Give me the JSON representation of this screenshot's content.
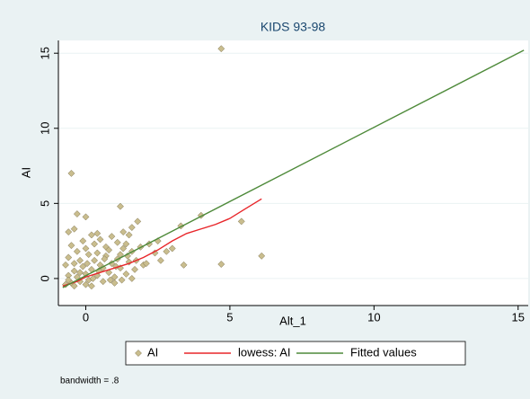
{
  "chart_data": {
    "type": "scatter",
    "title": "KIDS 93-98",
    "x_label": "Alt_1",
    "y_label": "AI",
    "note": "bandwidth = .8",
    "xlim": [
      -0.95,
      15.35
    ],
    "ylim": [
      -1.8,
      15.85
    ],
    "xticks": [
      0,
      5,
      10,
      15
    ],
    "yticks": [
      0,
      5,
      10,
      15
    ],
    "grid": true,
    "series": [
      {
        "name": "AI",
        "kind": "markers",
        "color": "#c9bd8e",
        "x": [
          -0.7,
          -0.6,
          -0.5,
          -0.4,
          -0.3,
          -0.2,
          -0.1,
          0,
          0.1,
          0.2,
          0.3,
          0.4,
          0.5,
          0.6,
          0.7,
          0.8,
          0.9,
          1.0,
          1.1,
          1.2,
          1.3,
          1.4,
          1.5,
          1.6,
          1.7,
          -0.6,
          -0.5,
          -0.3,
          -0.1,
          0.1,
          0.3,
          0.5,
          0.7,
          0.9,
          1.1,
          1.3,
          1.5,
          -0.7,
          -0.4,
          0,
          0.2,
          0.4,
          0.6,
          0.8,
          1.0,
          1.2,
          1.4,
          1.6,
          -0.2,
          0.0,
          0.2,
          0.4,
          -0.6,
          -0.4,
          -0.2,
          0.05,
          0.25,
          0.45,
          0.65,
          0.85,
          1.05,
          1.25,
          1.45,
          1.75,
          2.0,
          2.2,
          2.4,
          2.5,
          2.6,
          2.8,
          3.0,
          3.3,
          3.4,
          4.0,
          4.7,
          5.4,
          6.1,
          4.7,
          -0.5,
          1.2,
          1.8,
          -0.3,
          0,
          -0.6,
          -0.4,
          1.6,
          2.1,
          1.9
        ],
        "y": [
          -0.4,
          0.2,
          -0.3,
          0.5,
          0.1,
          -0.2,
          0.8,
          0.3,
          -0.1,
          0.6,
          1.2,
          0.2,
          0.9,
          -0.2,
          1.5,
          0.4,
          1.0,
          0.1,
          1.3,
          0.7,
          2.0,
          0.3,
          1.1,
          1.8,
          0.6,
          1.4,
          2.2,
          1.8,
          2.5,
          1.6,
          2.3,
          2.6,
          2.1,
          2.8,
          2.4,
          3.1,
          2.9,
          0.9,
          -0.5,
          -0.4,
          -0.5,
          1.7,
          0.7,
          1.9,
          -0.3,
          1.6,
          2.3,
          0.0,
          1.2,
          2.0,
          2.9,
          3.0,
          -0.1,
          1.0,
          0.4,
          1.0,
          0.0,
          0.5,
          1.3,
          -0.1,
          0.8,
          -0.1,
          1.5,
          1.2,
          0.9,
          2.3,
          1.7,
          2.5,
          1.2,
          1.8,
          2.0,
          3.5,
          0.9,
          4.2,
          0.95,
          3.8,
          1.5,
          15.3,
          7.0,
          4.8,
          3.8,
          4.3,
          4.1,
          3.1,
          3.3,
          3.4,
          1.0,
          2.1
        ]
      },
      {
        "name": "lowess: AI",
        "kind": "line",
        "color": "#e8262a",
        "x": [
          -0.8,
          -0.3,
          0,
          0.5,
          1,
          1.5,
          2,
          2.5,
          3,
          3.5,
          4,
          4.5,
          5,
          5.5,
          6.1
        ],
        "y": [
          -0.5,
          -0.2,
          0.1,
          0.4,
          0.7,
          1.0,
          1.4,
          1.9,
          2.5,
          3.0,
          3.3,
          3.6,
          4.0,
          4.6,
          5.3
        ]
      },
      {
        "name": "Fitted values",
        "kind": "line",
        "color": "#4e8a3a",
        "x": [
          -0.8,
          15.2
        ],
        "y": [
          -0.6,
          15.2
        ]
      }
    ]
  }
}
